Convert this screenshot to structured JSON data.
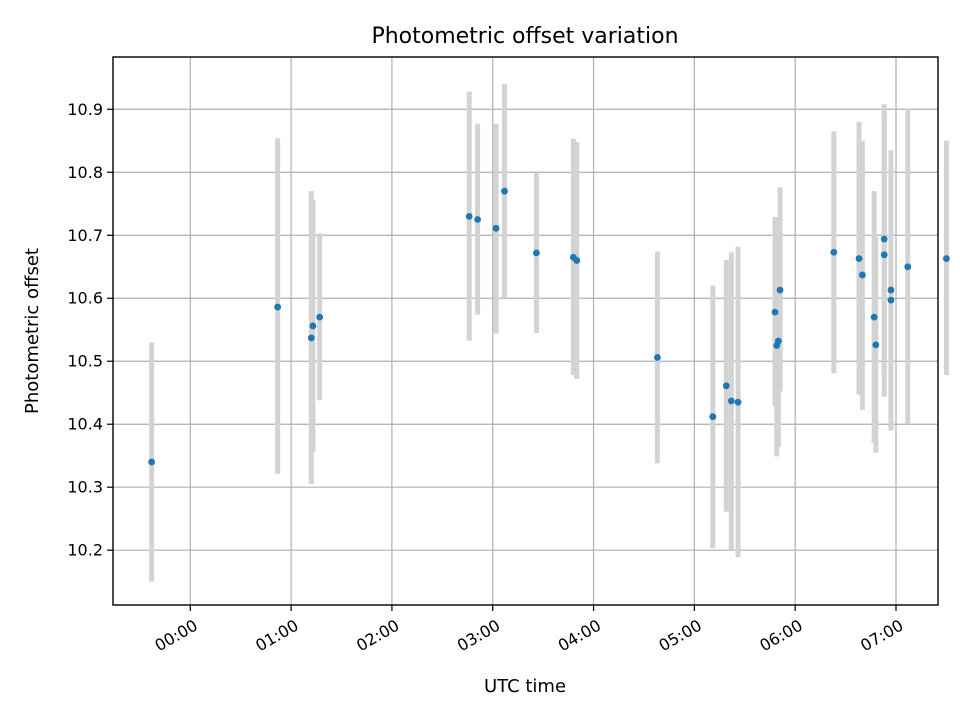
{
  "chart_data": {
    "type": "scatter",
    "title": "Photometric offset variation",
    "xlabel": "UTC time",
    "ylabel": "Photometric offset",
    "x_unit": "minutes",
    "xlim": [
      -46,
      445
    ],
    "ylim": [
      10.113,
      10.983
    ],
    "x_ticks": [
      {
        "value": 0,
        "label": "00:00"
      },
      {
        "value": 60,
        "label": "01:00"
      },
      {
        "value": 120,
        "label": "02:00"
      },
      {
        "value": 180,
        "label": "03:00"
      },
      {
        "value": 240,
        "label": "04:00"
      },
      {
        "value": 300,
        "label": "05:00"
      },
      {
        "value": 360,
        "label": "06:00"
      },
      {
        "value": 420,
        "label": "07:00"
      }
    ],
    "y_ticks": [
      {
        "value": 10.2,
        "label": "10.2"
      },
      {
        "value": 10.3,
        "label": "10.3"
      },
      {
        "value": 10.4,
        "label": "10.4"
      },
      {
        "value": 10.5,
        "label": "10.5"
      },
      {
        "value": 10.6,
        "label": "10.6"
      },
      {
        "value": 10.7,
        "label": "10.7"
      },
      {
        "value": 10.8,
        "label": "10.8"
      },
      {
        "value": 10.9,
        "label": "10.9"
      }
    ],
    "grid": true,
    "marker_color": "#1f77b4",
    "errorbar_color": "#d3d3d3",
    "points": [
      {
        "x": -23,
        "y": 10.34,
        "lo": 10.15,
        "hi": 10.53
      },
      {
        "x": 52,
        "y": 10.586,
        "lo": 10.321,
        "hi": 10.854
      },
      {
        "x": 72,
        "y": 10.537,
        "lo": 10.305,
        "hi": 10.77
      },
      {
        "x": 73,
        "y": 10.556,
        "lo": 10.356,
        "hi": 10.756
      },
      {
        "x": 77,
        "y": 10.57,
        "lo": 10.438,
        "hi": 10.703
      },
      {
        "x": 166,
        "y": 10.73,
        "lo": 10.533,
        "hi": 10.928
      },
      {
        "x": 171,
        "y": 10.725,
        "lo": 10.574,
        "hi": 10.877
      },
      {
        "x": 182,
        "y": 10.711,
        "lo": 10.544,
        "hi": 10.877
      },
      {
        "x": 187,
        "y": 10.77,
        "lo": 10.6,
        "hi": 10.94
      },
      {
        "x": 206,
        "y": 10.672,
        "lo": 10.545,
        "hi": 10.799
      },
      {
        "x": 228,
        "y": 10.665,
        "lo": 10.478,
        "hi": 10.853
      },
      {
        "x": 230,
        "y": 10.66,
        "lo": 10.472,
        "hi": 10.848
      },
      {
        "x": 278,
        "y": 10.506,
        "lo": 10.338,
        "hi": 10.674
      },
      {
        "x": 311,
        "y": 10.412,
        "lo": 10.203,
        "hi": 10.62
      },
      {
        "x": 319,
        "y": 10.461,
        "lo": 10.261,
        "hi": 10.661
      },
      {
        "x": 322,
        "y": 10.437,
        "lo": 10.201,
        "hi": 10.673
      },
      {
        "x": 326,
        "y": 10.435,
        "lo": 10.189,
        "hi": 10.682
      },
      {
        "x": 348,
        "y": 10.578,
        "lo": 10.428,
        "hi": 10.729
      },
      {
        "x": 349,
        "y": 10.525,
        "lo": 10.349,
        "hi": 10.7
      },
      {
        "x": 350,
        "y": 10.532,
        "lo": 10.364,
        "hi": 10.7
      },
      {
        "x": 351,
        "y": 10.613,
        "lo": 10.452,
        "hi": 10.776
      },
      {
        "x": 383,
        "y": 10.673,
        "lo": 10.481,
        "hi": 10.865
      },
      {
        "x": 398,
        "y": 10.663,
        "lo": 10.447,
        "hi": 10.88
      },
      {
        "x": 400,
        "y": 10.637,
        "lo": 10.423,
        "hi": 10.85
      },
      {
        "x": 407,
        "y": 10.57,
        "lo": 10.37,
        "hi": 10.77
      },
      {
        "x": 408,
        "y": 10.526,
        "lo": 10.355,
        "hi": 10.697
      },
      {
        "x": 413,
        "y": 10.694,
        "lo": 10.479,
        "hi": 10.908
      },
      {
        "x": 413,
        "y": 10.669,
        "lo": 10.444,
        "hi": 10.894
      },
      {
        "x": 417,
        "y": 10.613,
        "lo": 10.39,
        "hi": 10.835
      },
      {
        "x": 417,
        "y": 10.597,
        "lo": 10.394,
        "hi": 10.799
      },
      {
        "x": 427,
        "y": 10.65,
        "lo": 10.4,
        "hi": 10.9
      },
      {
        "x": 450,
        "y": 10.663,
        "lo": 10.478,
        "hi": 10.85
      }
    ]
  }
}
